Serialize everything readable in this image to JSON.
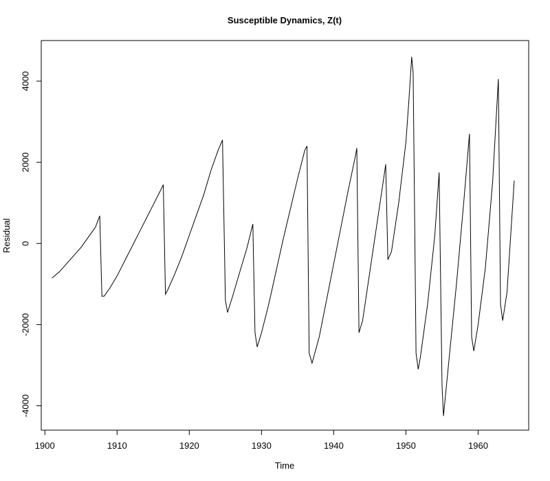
{
  "chart_data": {
    "type": "line",
    "title": "Susceptible Dynamics, Z(t)",
    "xlabel": "Time",
    "ylabel": "Residual",
    "xlim": [
      1899.5,
      1967
    ],
    "ylim": [
      -4600,
      5000
    ],
    "xticks": [
      1900,
      1910,
      1920,
      1930,
      1940,
      1950,
      1960
    ],
    "yticks": [
      -4000,
      -2000,
      0,
      2000,
      4000
    ],
    "grid": false,
    "series": [
      {
        "x": [
          1901.0,
          1902.0,
          1903.0,
          1904.0,
          1905.0,
          1906.0,
          1907.0,
          1907.6,
          1907.9,
          1908.2,
          1909.0,
          1910.0,
          1911.0,
          1912.0,
          1913.0,
          1914.0,
          1915.0,
          1916.0,
          1916.4,
          1916.7,
          1917.0,
          1918.0,
          1919.0,
          1920.0,
          1921.0,
          1922.0,
          1923.0,
          1924.0,
          1924.6,
          1925.0,
          1925.3,
          1926.0,
          1927.0,
          1928.0,
          1928.8,
          1929.1,
          1929.4,
          1930.0,
          1931.0,
          1932.0,
          1933.0,
          1934.0,
          1935.0,
          1936.0,
          1936.3,
          1936.6,
          1937.0,
          1938.0,
          1939.0,
          1940.0,
          1941.0,
          1942.0,
          1943.0,
          1943.2,
          1943.5,
          1944.0,
          1945.0,
          1946.0,
          1947.0,
          1947.2,
          1947.5,
          1948.0,
          1949.0,
          1950.0,
          1950.4,
          1950.8,
          1951.0,
          1951.4,
          1951.7,
          1952.0,
          1953.0,
          1954.0,
          1954.6,
          1955.0,
          1955.2,
          1956.0,
          1957.0,
          1958.0,
          1958.8,
          1959.1,
          1959.4,
          1960.0,
          1961.0,
          1962.0,
          1962.8,
          1963.1,
          1963.4,
          1964.0,
          1965.0
        ],
        "values": [
          -850,
          -700,
          -500,
          -300,
          -100,
          150,
          400,
          680,
          -1300,
          -1300,
          -1100,
          -800,
          -450,
          -100,
          250,
          600,
          950,
          1300,
          1450,
          -1250,
          -1150,
          -750,
          -300,
          200,
          700,
          1200,
          1800,
          2300,
          2550,
          -1400,
          -1700,
          -1300,
          -700,
          -100,
          480,
          -2200,
          -2550,
          -2200,
          -1500,
          -700,
          100,
          850,
          1600,
          2300,
          2400,
          -2700,
          -2950,
          -2300,
          -1400,
          -500,
          400,
          1300,
          2150,
          2350,
          -2200,
          -1900,
          -700,
          500,
          1700,
          1950,
          -400,
          -200,
          1000,
          2500,
          3500,
          4600,
          4200,
          -2700,
          -3100,
          -2800,
          -1500,
          200,
          1750,
          -3500,
          -4250,
          -2800,
          -1000,
          1000,
          2700,
          -2300,
          -2650,
          -2000,
          -600,
          1500,
          4050,
          -1500,
          -1900,
          -1200,
          1550
        ]
      }
    ]
  }
}
